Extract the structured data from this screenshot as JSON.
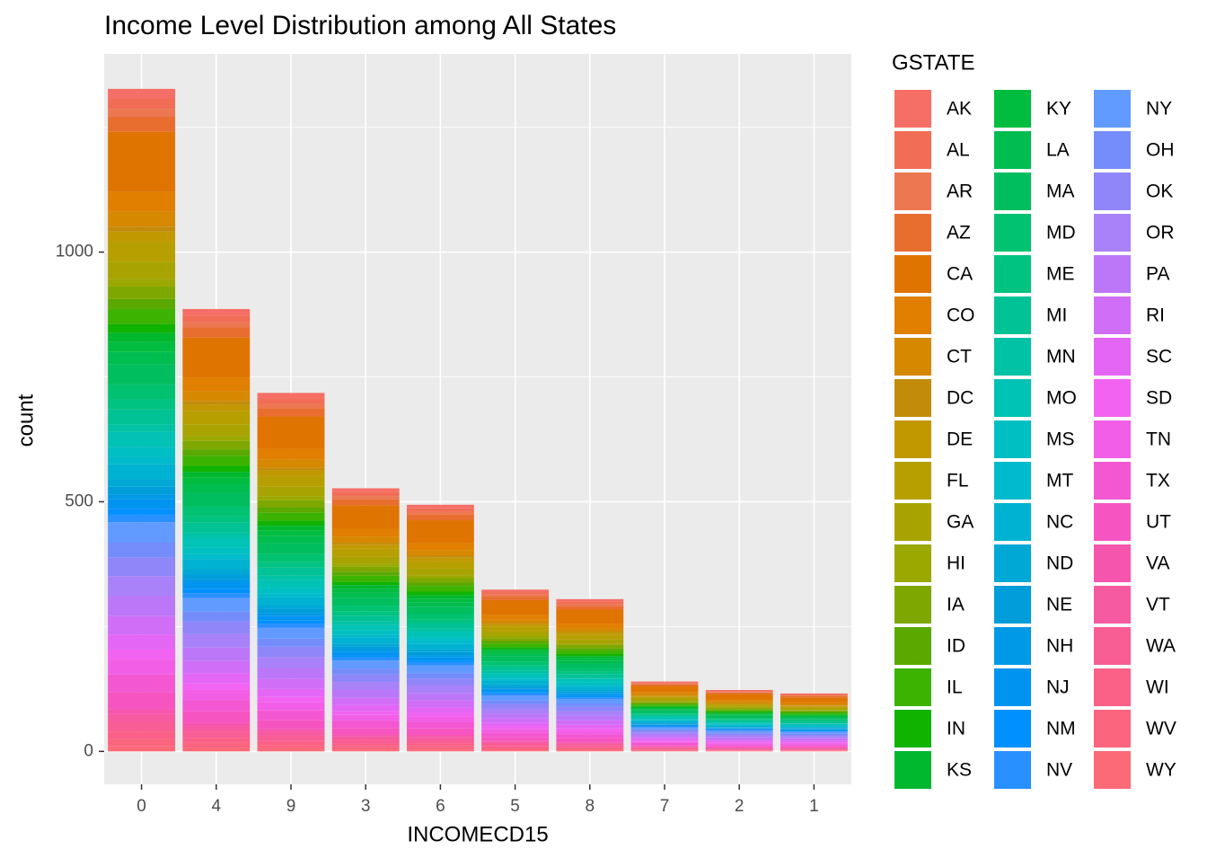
{
  "chart_data": {
    "type": "stacked_bar",
    "title": "Income Level Distribution among All States",
    "x_label": "INCOMECD15",
    "y_label": "count",
    "legend_title": "GSTATE",
    "categories": [
      "0",
      "4",
      "9",
      "3",
      "6",
      "5",
      "8",
      "7",
      "2",
      "1"
    ],
    "ylim": [
      -66,
      1397
    ],
    "yticks": [
      0,
      500,
      1000
    ],
    "minor_yticks": [
      250,
      750,
      1250
    ],
    "grid": true,
    "series": [
      {
        "name": "AK",
        "color": "hsl(4,88%,68%)",
        "values": [
          20,
          13,
          11,
          8,
          7,
          5,
          5,
          2,
          2,
          2
        ]
      },
      {
        "name": "AL",
        "color": "hsl(9,85%,64%)",
        "values": [
          20,
          13,
          11,
          8,
          7,
          5,
          5,
          2,
          2,
          2
        ]
      },
      {
        "name": "AR",
        "color": "hsl(15,80%,62%)",
        "values": [
          16,
          11,
          9,
          6,
          6,
          4,
          4,
          2,
          1,
          1
        ]
      },
      {
        "name": "AZ",
        "color": "hsl(20,80%,55%)",
        "values": [
          30,
          20,
          16,
          12,
          11,
          7,
          7,
          3,
          3,
          3
        ]
      },
      {
        "name": "CA",
        "color": "hsl(31,100%,44%)",
        "values": [
          120,
          80,
          65,
          47,
          45,
          29,
          28,
          12,
          11,
          10
        ]
      },
      {
        "name": "CO",
        "color": "hsl(34,100%,44%)",
        "values": [
          40,
          27,
          22,
          16,
          15,
          10,
          9,
          4,
          4,
          3
        ]
      },
      {
        "name": "CT",
        "color": "hsl(38,100%,42%)",
        "values": [
          30,
          20,
          16,
          12,
          11,
          7,
          7,
          3,
          3,
          3
        ]
      },
      {
        "name": "DC",
        "color": "hsl(42,90%,40%)",
        "values": [
          10,
          7,
          5,
          4,
          4,
          2,
          2,
          1,
          1,
          1
        ]
      },
      {
        "name": "DE",
        "color": "hsl(47,100%,38%)",
        "values": [
          20,
          13,
          11,
          8,
          7,
          5,
          5,
          2,
          2,
          2
        ]
      },
      {
        "name": "FL",
        "color": "hsl(52,100%,36%)",
        "values": [
          40,
          27,
          22,
          16,
          15,
          10,
          9,
          4,
          4,
          3
        ]
      },
      {
        "name": "GA",
        "color": "hsl(58,100%,33%)",
        "values": [
          35,
          23,
          19,
          14,
          13,
          9,
          8,
          4,
          3,
          3
        ]
      },
      {
        "name": "HI",
        "color": "hsl(65,100%,33%)",
        "values": [
          15,
          10,
          8,
          6,
          6,
          4,
          3,
          2,
          1,
          1
        ]
      },
      {
        "name": "IA",
        "color": "hsl(75,100%,33%)",
        "values": [
          25,
          17,
          14,
          10,
          9,
          6,
          6,
          3,
          2,
          2
        ]
      },
      {
        "name": "ID",
        "color": "hsl(88,100%,33%)",
        "values": [
          20,
          13,
          11,
          8,
          7,
          5,
          5,
          2,
          2,
          2
        ]
      },
      {
        "name": "IL",
        "color": "hsl(100,100%,35%)",
        "values": [
          30,
          20,
          16,
          12,
          11,
          7,
          7,
          3,
          3,
          3
        ]
      },
      {
        "name": "IN",
        "color": "hsl(115,100%,35%)",
        "values": [
          18,
          12,
          10,
          7,
          7,
          4,
          4,
          2,
          2,
          2
        ]
      },
      {
        "name": "KS",
        "color": "hsl(135,100%,36%)",
        "values": [
          18,
          12,
          10,
          7,
          7,
          4,
          4,
          2,
          2,
          2
        ]
      },
      {
        "name": "KY",
        "color": "hsl(140,100%,37%)",
        "values": [
          20,
          13,
          11,
          8,
          7,
          5,
          5,
          2,
          2,
          2
        ]
      },
      {
        "name": "LA",
        "color": "hsl(145,100%,37%)",
        "values": [
          25,
          17,
          14,
          10,
          9,
          6,
          6,
          3,
          2,
          2
        ]
      },
      {
        "name": "MA",
        "color": "hsl(150,100%,37%)",
        "values": [
          40,
          27,
          22,
          16,
          15,
          10,
          9,
          4,
          4,
          3
        ]
      },
      {
        "name": "MD",
        "color": "hsl(155,100%,38%)",
        "values": [
          30,
          20,
          16,
          12,
          11,
          7,
          7,
          3,
          3,
          3
        ]
      },
      {
        "name": "ME",
        "color": "hsl(160,100%,38%)",
        "values": [
          20,
          13,
          11,
          8,
          7,
          5,
          5,
          2,
          2,
          2
        ]
      },
      {
        "name": "MI",
        "color": "hsl(166,100%,38%)",
        "values": [
          30,
          20,
          16,
          12,
          11,
          7,
          7,
          3,
          3,
          3
        ]
      },
      {
        "name": "MN",
        "color": "hsl(171,100%,38%)",
        "values": [
          15,
          10,
          8,
          6,
          6,
          4,
          3,
          2,
          1,
          1
        ]
      },
      {
        "name": "MO",
        "color": "hsl(176,100%,38%)",
        "values": [
          30,
          20,
          16,
          12,
          11,
          7,
          7,
          3,
          3,
          3
        ]
      },
      {
        "name": "MS",
        "color": "hsl(181,100%,38%)",
        "values": [
          20,
          13,
          11,
          8,
          7,
          5,
          5,
          2,
          2,
          2
        ]
      },
      {
        "name": "MT",
        "color": "hsl(185,100%,40%)",
        "values": [
          15,
          10,
          8,
          6,
          6,
          4,
          3,
          2,
          1,
          1
        ]
      },
      {
        "name": "NC",
        "color": "hsl(189,100%,41%)",
        "values": [
          30,
          20,
          16,
          12,
          11,
          7,
          7,
          3,
          3,
          3
        ]
      },
      {
        "name": "ND",
        "color": "hsl(193,100%,42%)",
        "values": [
          15,
          10,
          8,
          6,
          6,
          4,
          3,
          2,
          1,
          1
        ]
      },
      {
        "name": "NE",
        "color": "hsl(197,100%,43%)",
        "values": [
          15,
          10,
          8,
          6,
          6,
          4,
          3,
          2,
          1,
          1
        ]
      },
      {
        "name": "NH",
        "color": "hsl(200,100%,45%)",
        "values": [
          10,
          7,
          5,
          4,
          4,
          2,
          2,
          1,
          1,
          1
        ]
      },
      {
        "name": "NJ",
        "color": "hsl(203,100%,47%)",
        "values": [
          19,
          13,
          10,
          7,
          7,
          5,
          4,
          2,
          2,
          2
        ]
      },
      {
        "name": "NM",
        "color": "hsl(206,100%,50%)",
        "values": [
          12,
          8,
          6,
          5,
          4,
          3,
          3,
          1,
          1,
          1
        ]
      },
      {
        "name": "NV",
        "color": "hsl(211,100%,58%)",
        "values": [
          15,
          10,
          8,
          6,
          6,
          4,
          3,
          2,
          1,
          1
        ]
      },
      {
        "name": "NY",
        "color": "hsl(218,100%,69%)",
        "values": [
          40,
          27,
          22,
          16,
          15,
          10,
          9,
          4,
          4,
          3
        ]
      },
      {
        "name": "OH",
        "color": "hsl(229,95%,72%)",
        "values": [
          30,
          20,
          16,
          12,
          11,
          7,
          7,
          3,
          3,
          3
        ]
      },
      {
        "name": "OK",
        "color": "hsl(245,90%,75%)",
        "values": [
          38,
          25,
          21,
          15,
          14,
          9,
          9,
          4,
          3,
          3
        ]
      },
      {
        "name": "OR",
        "color": "hsl(260,90%,74%)",
        "values": [
          40,
          27,
          22,
          16,
          15,
          10,
          9,
          4,
          4,
          3
        ]
      },
      {
        "name": "PA",
        "color": "hsl(272,90%,72%)",
        "values": [
          40,
          27,
          22,
          16,
          15,
          10,
          9,
          4,
          4,
          3
        ]
      },
      {
        "name": "RI",
        "color": "hsl(283,90%,70%)",
        "values": [
          37,
          25,
          20,
          14,
          14,
          9,
          9,
          4,
          3,
          3
        ]
      },
      {
        "name": "SC",
        "color": "hsl(293,88%,68%)",
        "values": [
          30,
          20,
          16,
          12,
          11,
          7,
          7,
          3,
          3,
          3
        ]
      },
      {
        "name": "SD",
        "color": "hsl(300,85%,67%)",
        "values": [
          20,
          13,
          11,
          8,
          7,
          5,
          5,
          2,
          2,
          2
        ]
      },
      {
        "name": "TN",
        "color": "hsl(305,85%,66%)",
        "values": [
          30,
          20,
          16,
          12,
          11,
          7,
          7,
          3,
          3,
          3
        ]
      },
      {
        "name": "TX",
        "color": "hsl(313,88%,65%)",
        "values": [
          35,
          23,
          19,
          14,
          13,
          9,
          8,
          4,
          3,
          3
        ]
      },
      {
        "name": "UT",
        "color": "hsl(320,90%,65%)",
        "values": [
          34,
          23,
          18,
          13,
          13,
          8,
          8,
          3,
          3,
          3
        ]
      },
      {
        "name": "VA",
        "color": "hsl(327,90%,65%)",
        "values": [
          10,
          7,
          5,
          4,
          4,
          2,
          2,
          1,
          1,
          1
        ]
      },
      {
        "name": "VT",
        "color": "hsl(333,90%,66%)",
        "values": [
          15,
          10,
          8,
          6,
          6,
          4,
          3,
          2,
          1,
          1
        ]
      },
      {
        "name": "WA",
        "color": "hsl(339,92%,67%)",
        "values": [
          20,
          13,
          11,
          8,
          7,
          5,
          5,
          2,
          2,
          2
        ]
      },
      {
        "name": "WI",
        "color": "hsl(345,95%,68%)",
        "values": [
          15,
          10,
          8,
          6,
          6,
          4,
          3,
          2,
          1,
          1
        ]
      },
      {
        "name": "WV",
        "color": "hsl(350,95%,69%)",
        "values": [
          15,
          10,
          8,
          6,
          6,
          4,
          3,
          2,
          1,
          1
        ]
      },
      {
        "name": "WY",
        "color": "hsl(355,95%,70%)",
        "values": [
          10,
          7,
          5,
          4,
          4,
          2,
          2,
          1,
          1,
          1
        ]
      }
    ]
  }
}
